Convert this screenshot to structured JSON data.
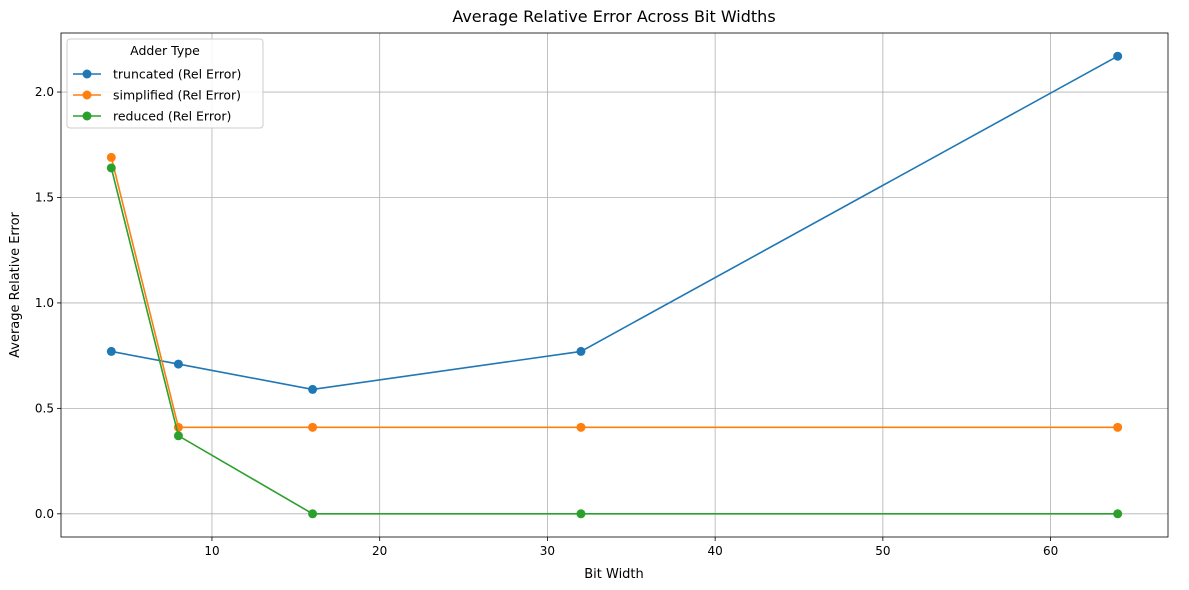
{
  "chart_data": {
    "type": "line",
    "title": "Average Relative Error Across Bit Widths",
    "xlabel": "Bit Width",
    "ylabel": "Average Relative Error",
    "xlim": [
      1,
      67
    ],
    "ylim": [
      -0.11,
      2.28
    ],
    "xticks": [
      10,
      20,
      30,
      40,
      50,
      60
    ],
    "yticks": [
      0.0,
      0.5,
      1.0,
      1.5,
      2.0
    ],
    "xtick_labels": [
      "10",
      "20",
      "30",
      "40",
      "50",
      "60"
    ],
    "ytick_labels": [
      "0.0",
      "0.5",
      "1.0",
      "1.5",
      "2.0"
    ],
    "grid": true,
    "legend": {
      "title": "Adder Type",
      "position": "top-left"
    },
    "x": [
      4,
      8,
      16,
      32,
      64
    ],
    "series": [
      {
        "name": "truncated (Rel Error)",
        "color": "#1f77b4",
        "values": [
          0.77,
          0.71,
          0.59,
          0.77,
          2.17
        ]
      },
      {
        "name": "simplified (Rel Error)",
        "color": "#ff7f0e",
        "values": [
          1.69,
          0.41,
          0.41,
          0.41,
          0.41
        ]
      },
      {
        "name": "reduced (Rel Error)",
        "color": "#2ca02c",
        "values": [
          1.64,
          0.37,
          0.0,
          0.0,
          0.0
        ]
      }
    ]
  }
}
